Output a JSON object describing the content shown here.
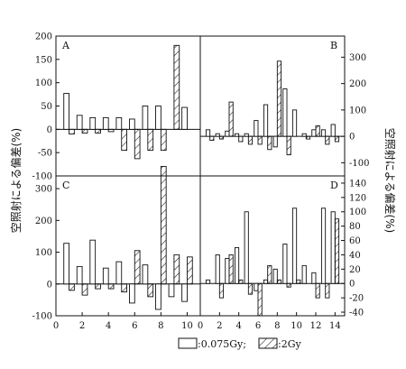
{
  "figure": {
    "ylabel_left": "空照射による偏差(%)",
    "ylabel_right": "空照射による偏差(%)",
    "legend": {
      "open_label": ":0.075Gy;",
      "hatched_label": ":2Gy"
    },
    "colors": {
      "ink": "#111111",
      "background": "#ffffff"
    }
  },
  "chart_data": [
    {
      "panel": "A",
      "type": "bar",
      "x": [
        1,
        2,
        3,
        4,
        5,
        6,
        7,
        8,
        9,
        10
      ],
      "series": [
        {
          "values": [
            77,
            30,
            25,
            25,
            25,
            22,
            50,
            50,
            0,
            47
          ]
        },
        {
          "values": [
            -10,
            -8,
            -8,
            -5,
            -45,
            -63,
            -45,
            -45,
            180,
            0
          ]
        }
      ],
      "xlim": [
        0,
        11
      ],
      "ylim": [
        -100,
        200
      ],
      "yticks": [
        -100,
        -50,
        0,
        50,
        100,
        150,
        200
      ],
      "xticks": [
        0,
        2,
        4,
        6,
        8,
        10
      ],
      "axis_side": "left"
    },
    {
      "panel": "B",
      "type": "bar",
      "x": [
        1,
        2,
        3,
        4,
        5,
        6,
        7,
        8,
        9,
        10,
        11,
        12,
        13,
        14
      ],
      "series": [
        {
          "values": [
            25,
            10,
            20,
            10,
            10,
            60,
            120,
            -40,
            180,
            100,
            10,
            25,
            25,
            45
          ]
        },
        {
          "values": [
            -15,
            -10,
            130,
            -20,
            -30,
            -30,
            -50,
            285,
            -70,
            0,
            -10,
            40,
            -30,
            -20
          ]
        }
      ],
      "xlim": [
        0,
        15
      ],
      "ylim": [
        -150,
        380
      ],
      "yticks": [
        -100,
        0,
        100,
        200,
        300
      ],
      "xticks": [
        0,
        2,
        4,
        6,
        8,
        10,
        12,
        14
      ],
      "axis_side": "right"
    },
    {
      "panel": "C",
      "type": "bar",
      "x": [
        1,
        2,
        3,
        4,
        5,
        6,
        7,
        8,
        9,
        10
      ],
      "series": [
        {
          "values": [
            128,
            55,
            138,
            50,
            70,
            -60,
            60,
            -80,
            -40,
            -55
          ]
        },
        {
          "values": [
            -20,
            -35,
            -15,
            -15,
            -25,
            105,
            -40,
            370,
            92,
            85
          ]
        }
      ],
      "xlim": [
        0,
        11
      ],
      "ylim": [
        -100,
        340
      ],
      "yticks": [
        -100,
        0,
        100,
        200,
        300
      ],
      "xticks": [
        0,
        2,
        4,
        6,
        8,
        10
      ],
      "axis_side": "left"
    },
    {
      "panel": "D",
      "type": "bar",
      "x": [
        1,
        2,
        3,
        4,
        5,
        6,
        7,
        8,
        9,
        10,
        11,
        12,
        13,
        14
      ],
      "series": [
        {
          "values": [
            5,
            40,
            35,
            50,
            100,
            -10,
            5,
            20,
            55,
            105,
            25,
            15,
            105,
            100
          ]
        },
        {
          "values": [
            0,
            -20,
            40,
            5,
            -15,
            -45,
            25,
            5,
            -5,
            5,
            0,
            -20,
            -20,
            90
          ]
        }
      ],
      "xlim": [
        0,
        15
      ],
      "ylim": [
        -45,
        150
      ],
      "yticks": [
        -40,
        -20,
        0,
        20,
        40,
        60,
        80,
        100,
        120,
        140
      ],
      "xticks": [
        0,
        2,
        4,
        6,
        8,
        10,
        12,
        14
      ],
      "axis_side": "right"
    }
  ]
}
